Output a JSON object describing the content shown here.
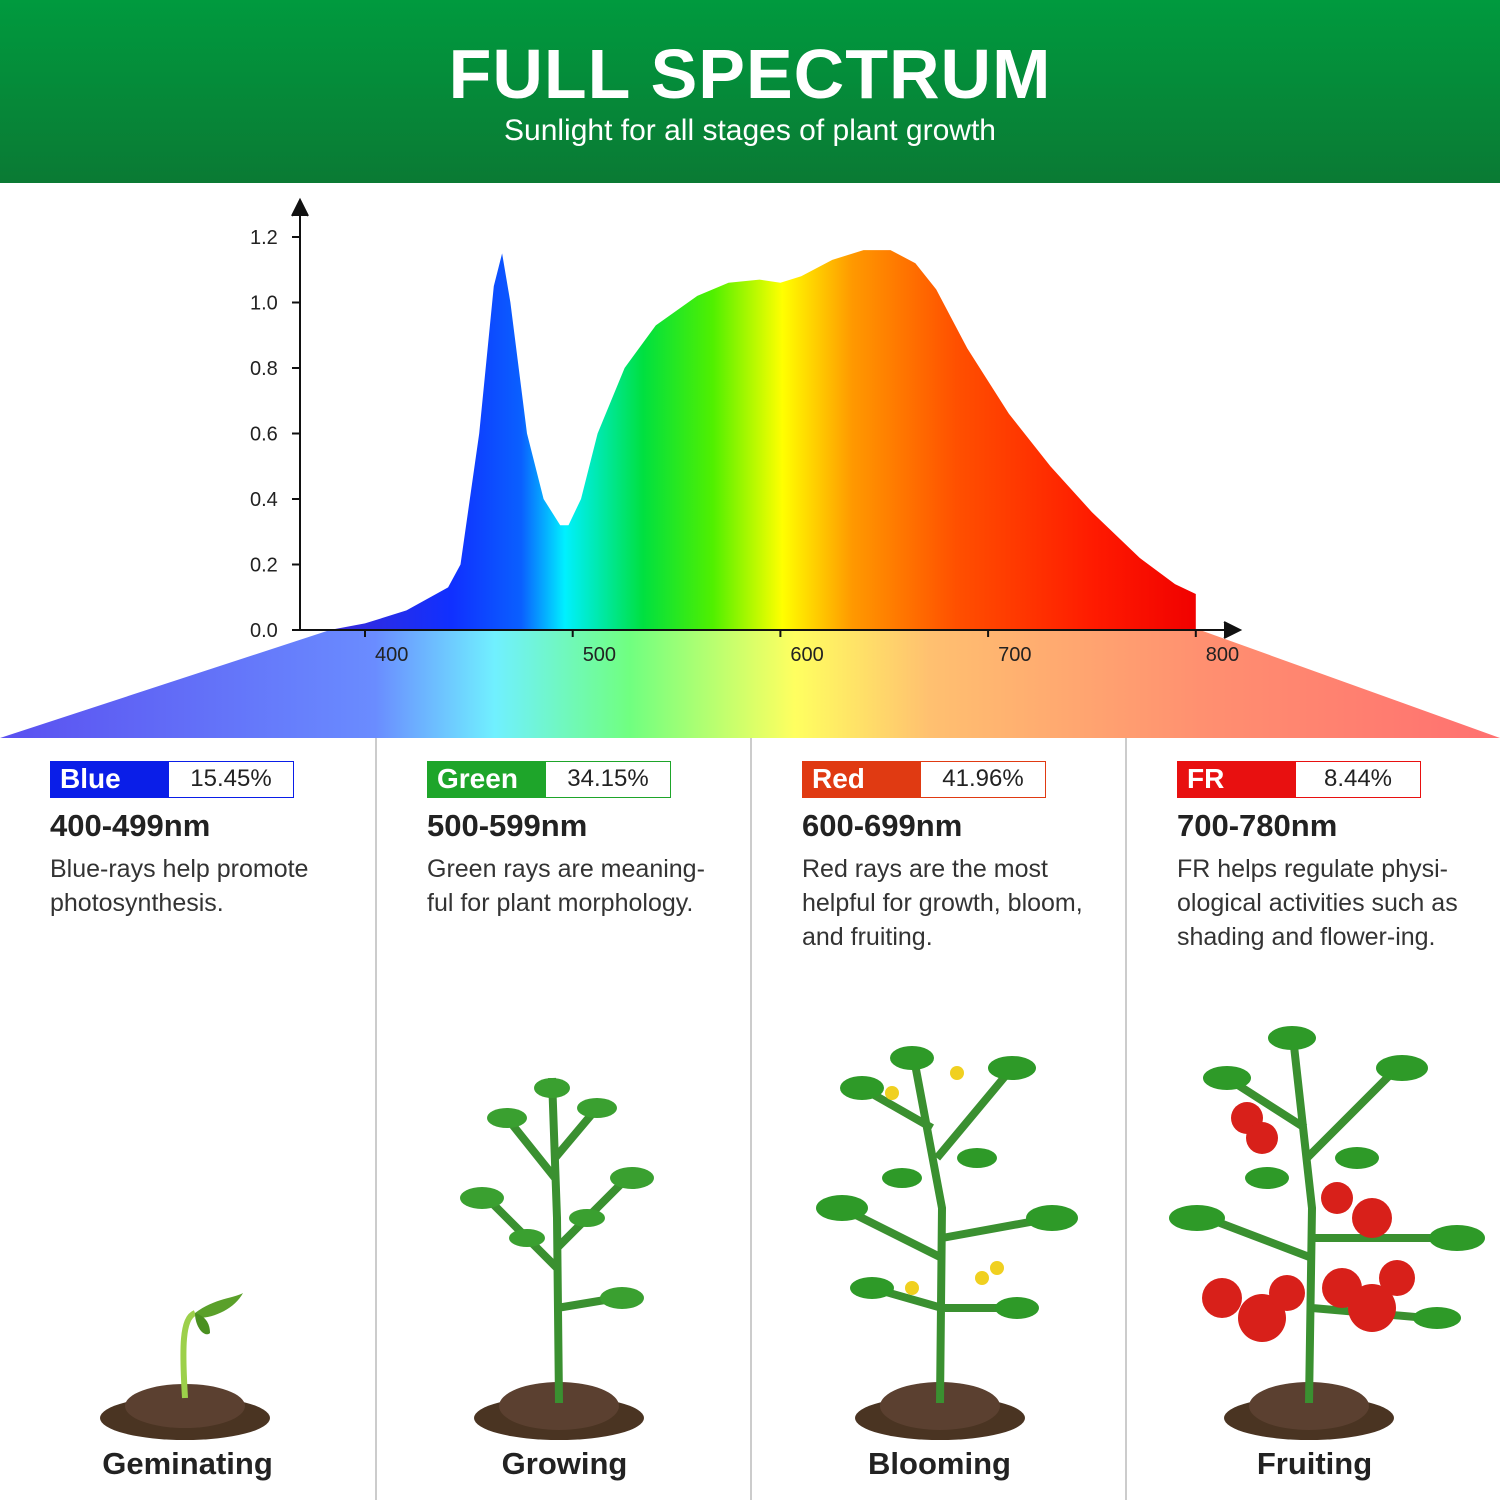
{
  "header": {
    "title": "FULL SPECTRUM",
    "subtitle": "Sunlight for all stages of plant growth"
  },
  "chart_data": {
    "type": "area",
    "title": "",
    "xlabel": "",
    "ylabel": "",
    "xlim": [
      370,
      830
    ],
    "ylim": [
      0,
      1.25
    ],
    "x_ticks": [
      "400",
      "500",
      "600",
      "700",
      "800"
    ],
    "y_ticks": [
      "0.0",
      "0.2",
      "0.4",
      "0.6",
      "0.8",
      "1.0",
      "1.2"
    ],
    "x": [
      383,
      400,
      420,
      440,
      446,
      455,
      462,
      466,
      470,
      478,
      486,
      494,
      498,
      504,
      512,
      525,
      540,
      560,
      575,
      590,
      600,
      610,
      625,
      640,
      653,
      665,
      675,
      690,
      710,
      730,
      750,
      773,
      790,
      800
    ],
    "y": [
      0,
      0.02,
      0.06,
      0.13,
      0.2,
      0.6,
      1.05,
      1.15,
      1.0,
      0.6,
      0.4,
      0.32,
      0.32,
      0.4,
      0.6,
      0.8,
      0.93,
      1.02,
      1.06,
      1.07,
      1.06,
      1.08,
      1.13,
      1.16,
      1.16,
      1.12,
      1.04,
      0.86,
      0.66,
      0.5,
      0.36,
      0.22,
      0.14,
      0.11
    ],
    "grid": false
  },
  "bands": [
    {
      "name": "Blue",
      "percent": "15.45%",
      "range": "400-499nm",
      "desc": "Blue-rays help promote photosynthesis.",
      "stage": "Geminating",
      "color": "#0a1ee8"
    },
    {
      "name": "Green",
      "percent": "34.15%",
      "range": "500-599nm",
      "desc": "Green rays are meaning-ful for plant morphology.",
      "stage": "Growing",
      "color": "#1ea52a"
    },
    {
      "name": "Red",
      "percent": "41.96%",
      "range": "600-699nm",
      "desc": "Red rays are the most helpful for growth, bloom, and fruiting.",
      "stage": "Blooming",
      "color": "#e03a12"
    },
    {
      "name": "FR",
      "percent": "8.44%",
      "range": "700-780nm",
      "desc": "FR helps regulate physi-ological activities such as shading and flower-ing.",
      "stage": "Fruiting",
      "color": "#e81010"
    }
  ]
}
